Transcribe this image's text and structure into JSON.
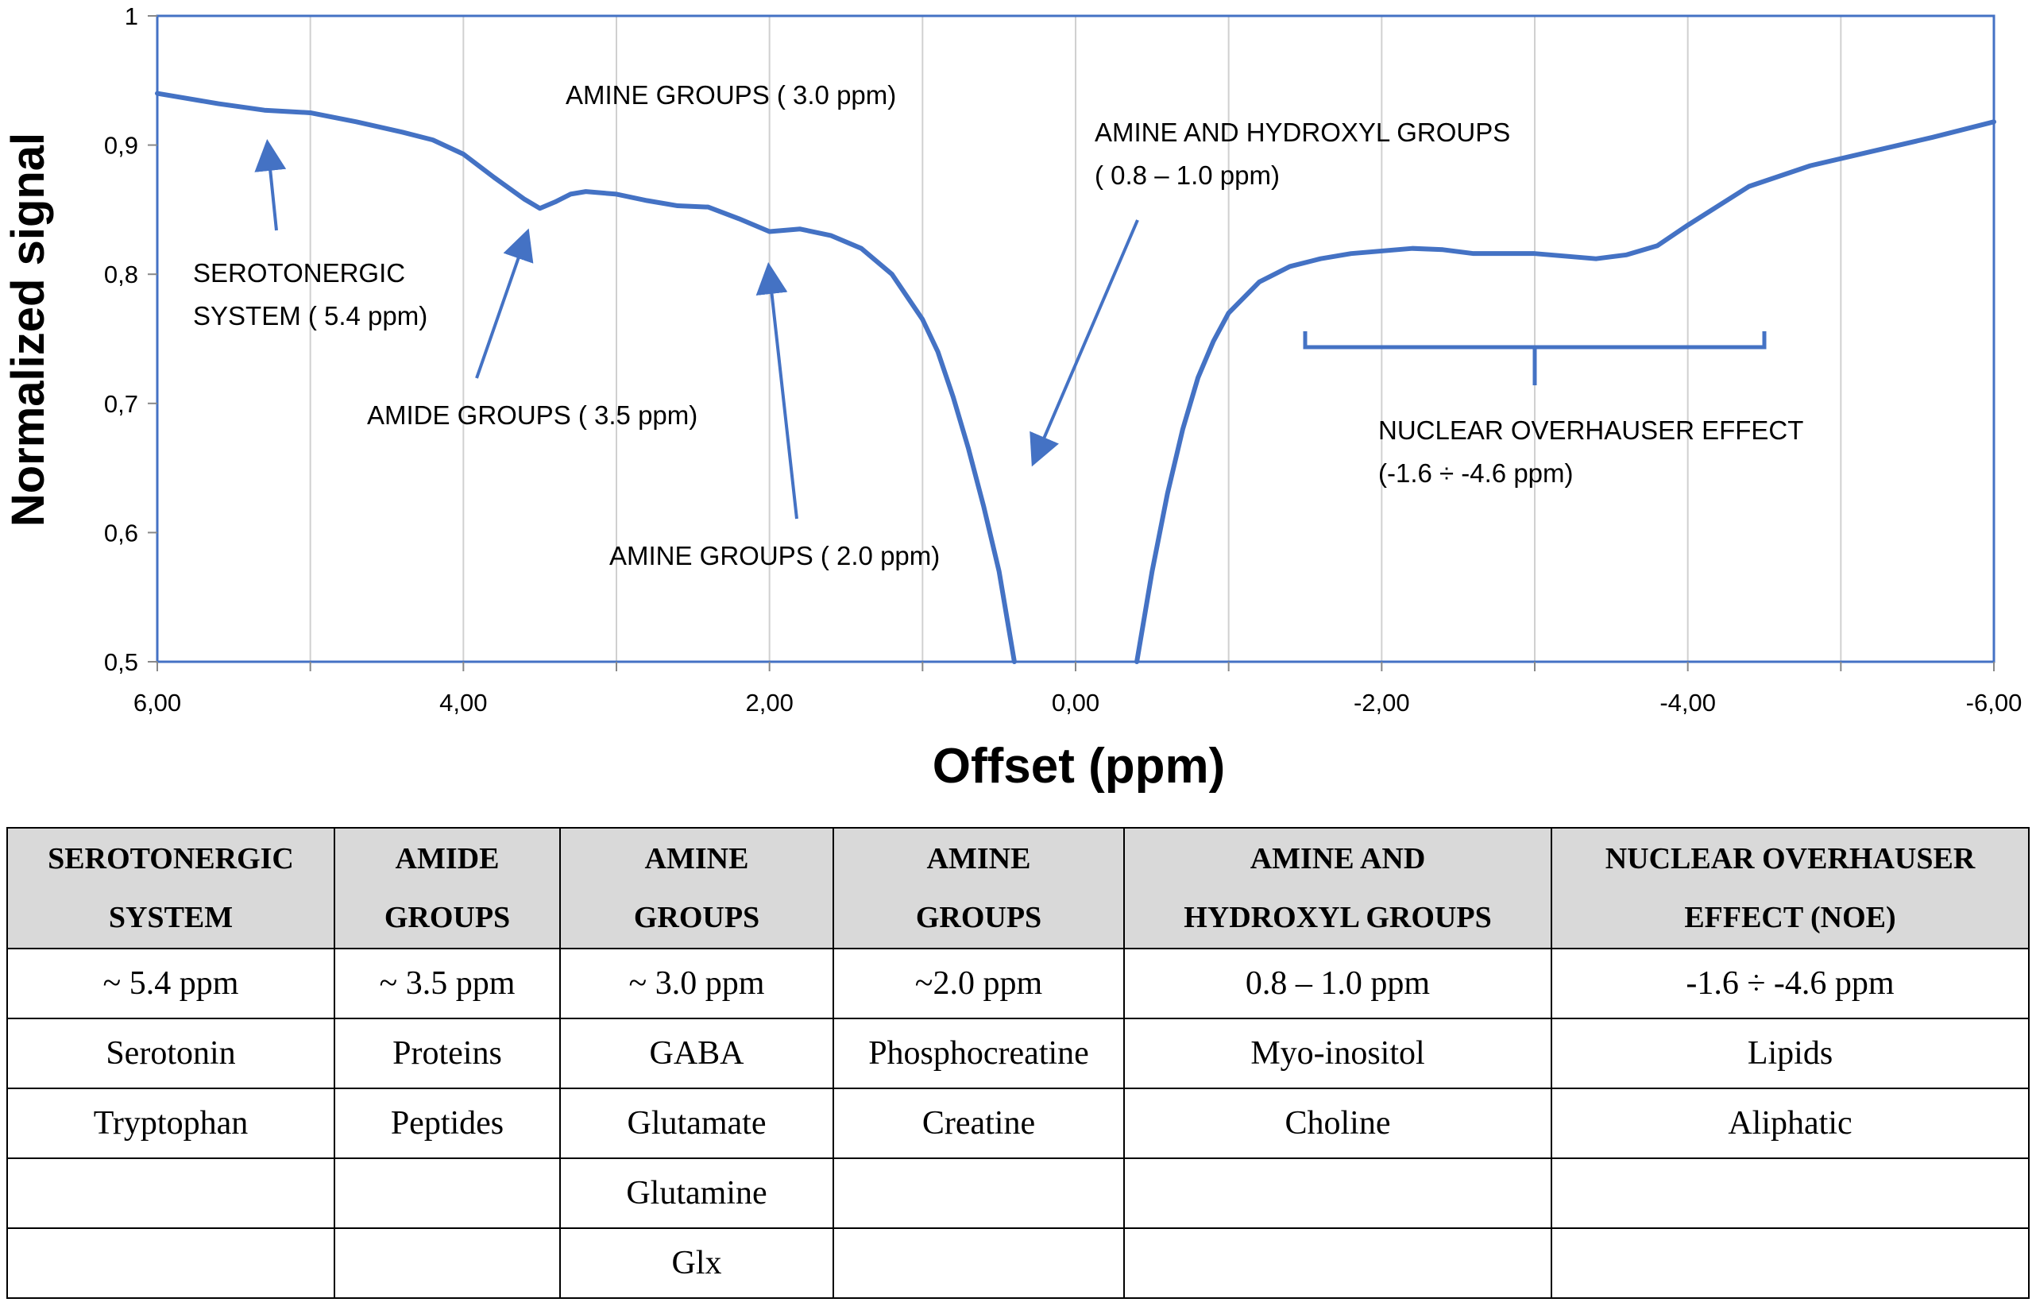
{
  "chart_data": {
    "type": "line",
    "xlabel": "Offset (ppm)",
    "ylabel": "Normalized signal",
    "xlim": [
      6,
      -6
    ],
    "ylim": [
      0.5,
      1
    ],
    "x_reversed": true,
    "x_ticks": [
      "6,00",
      "4,00",
      "2,00",
      "0,00",
      "-2,00",
      "-4,00",
      "-6,00"
    ],
    "y_ticks": [
      "0,5",
      "0,6",
      "0,7",
      "0,8",
      "0,9",
      "1"
    ],
    "grid": "vertical",
    "color": "#4472c4",
    "series": [
      {
        "x": [
          6.0,
          5.6,
          5.3,
          5.0,
          4.7,
          4.4,
          4.2,
          4.0,
          3.8,
          3.6,
          3.5,
          3.4,
          3.3,
          3.2,
          3.0,
          2.8,
          2.6,
          2.4,
          2.2,
          2.0,
          1.8,
          1.6,
          1.4,
          1.2,
          1.0,
          0.9,
          0.8,
          0.7,
          0.6,
          0.5,
          0.45,
          0.4
        ],
        "y": [
          0.94,
          0.932,
          0.927,
          0.925,
          0.918,
          0.91,
          0.904,
          0.893,
          0.875,
          0.858,
          0.851,
          0.856,
          0.862,
          0.864,
          0.862,
          0.857,
          0.853,
          0.852,
          0.843,
          0.833,
          0.835,
          0.83,
          0.82,
          0.8,
          0.765,
          0.74,
          0.705,
          0.665,
          0.62,
          0.57,
          0.535,
          0.5
        ]
      },
      {
        "x": [
          -0.4,
          -0.45,
          -0.5,
          -0.6,
          -0.7,
          -0.8,
          -0.9,
          -1.0,
          -1.2,
          -1.4,
          -1.6,
          -1.8,
          -2.0,
          -2.2,
          -2.4,
          -2.6,
          -2.8,
          -3.0,
          -3.2,
          -3.4,
          -3.6,
          -3.8,
          -4.0,
          -4.4,
          -4.8,
          -5.2,
          -5.6,
          -6.0
        ],
        "y": [
          0.5,
          0.535,
          0.57,
          0.63,
          0.68,
          0.72,
          0.748,
          0.77,
          0.794,
          0.806,
          0.812,
          0.816,
          0.818,
          0.82,
          0.819,
          0.816,
          0.816,
          0.816,
          0.814,
          0.812,
          0.815,
          0.822,
          0.838,
          0.868,
          0.884,
          0.895,
          0.906,
          0.918
        ]
      }
    ],
    "annotations": [
      {
        "id": "amine-3",
        "lines": [
          "AMINE GROUPS ( 3.0 ppm)"
        ]
      },
      {
        "id": "amine-hydroxyl",
        "lines": [
          "AMINE AND HYDROXYL GROUPS",
          "( 0.8 – 1.0 ppm)"
        ]
      },
      {
        "id": "serotonergic",
        "lines": [
          "SEROTONERGIC",
          "SYSTEM ( 5.4 ppm)"
        ]
      },
      {
        "id": "amide",
        "lines": [
          "AMIDE GROUPS ( 3.5 ppm)"
        ]
      },
      {
        "id": "amine-2",
        "lines": [
          "AMINE GROUPS ( 2.0 ppm)"
        ]
      },
      {
        "id": "noe",
        "lines": [
          "NUCLEAR OVERHAUSER EFFECT",
          "(-1.6 ÷ -4.6 ppm)"
        ]
      }
    ]
  },
  "table": {
    "headers": [
      [
        "SEROTONERGIC",
        "SYSTEM"
      ],
      [
        "AMIDE",
        "GROUPS"
      ],
      [
        "AMINE",
        "GROUPS"
      ],
      [
        "AMINE",
        "GROUPS"
      ],
      [
        "AMINE AND",
        "HYDROXYL GROUPS"
      ],
      [
        "NUCLEAR OVERHAUSER",
        "EFFECT (NOE)"
      ]
    ],
    "rows": [
      [
        "~ 5.4 ppm",
        "~ 3.5 ppm",
        "~ 3.0 ppm",
        "~2.0 ppm",
        "0.8 – 1.0 ppm",
        "-1.6  ÷ -4.6 ppm"
      ],
      [
        "Serotonin",
        "Proteins",
        "GABA",
        "Phosphocreatine",
        "Myo-inositol",
        "Lipids"
      ],
      [
        "Tryptophan",
        "Peptides",
        "Glutamate",
        "Creatine",
        "Choline",
        "Aliphatic"
      ],
      [
        "",
        "",
        "Glutamine",
        "",
        "",
        ""
      ],
      [
        "",
        "",
        "Glx",
        "",
        "",
        ""
      ]
    ]
  }
}
